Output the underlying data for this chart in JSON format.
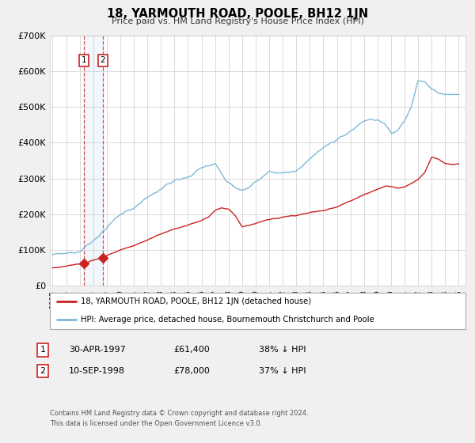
{
  "title": "18, YARMOUTH ROAD, POOLE, BH12 1JN",
  "subtitle": "Price paid vs. HM Land Registry's House Price Index (HPI)",
  "xlim": [
    1994.8,
    2025.5
  ],
  "ylim": [
    0,
    700000
  ],
  "yticks": [
    0,
    100000,
    200000,
    300000,
    400000,
    500000,
    600000,
    700000
  ],
  "ytick_labels": [
    "£0",
    "£100K",
    "£200K",
    "£300K",
    "£400K",
    "£500K",
    "£600K",
    "£700K"
  ],
  "sale1_date": 1997.33,
  "sale1_price": 61400,
  "sale2_date": 1998.71,
  "sale2_price": 78000,
  "hpi_color": "#7db8d8",
  "sale_color": "#cc2222",
  "legend_line1": "18, YARMOUTH ROAD, POOLE, BH12 1JN (detached house)",
  "legend_line2": "HPI: Average price, detached house, Bournemouth Christchurch and Poole",
  "table_row1_num": "1",
  "table_row1_date": "30-APR-1997",
  "table_row1_price": "£61,400",
  "table_row1_pct": "38% ↓ HPI",
  "table_row2_num": "2",
  "table_row2_date": "10-SEP-1998",
  "table_row2_price": "£78,000",
  "table_row2_pct": "37% ↓ HPI",
  "footer1": "Contains HM Land Registry data © Crown copyright and database right 2024.",
  "footer2": "This data is licensed under the Open Government Licence v3.0.",
  "background_color": "#f0f0f0",
  "plot_bg_color": "#ffffff",
  "hpi_anchors_x": [
    1995.0,
    1996.0,
    1997.0,
    1998.0,
    1999.0,
    2000.0,
    2001.0,
    2002.0,
    2003.0,
    2004.0,
    2005.0,
    2006.0,
    2007.0,
    2007.8,
    2008.5,
    2009.0,
    2009.5,
    2010.0,
    2011.0,
    2012.0,
    2013.0,
    2014.0,
    2015.0,
    2016.0,
    2017.0,
    2017.5,
    2018.0,
    2018.5,
    2019.0,
    2019.5,
    2020.0,
    2020.5,
    2021.0,
    2021.5,
    2022.0,
    2022.5,
    2023.0,
    2023.5,
    2024.0,
    2024.5,
    2025.0
  ],
  "hpi_anchors_y": [
    87000,
    90000,
    97000,
    125000,
    162000,
    200000,
    218000,
    247000,
    270000,
    295000,
    303000,
    330000,
    343000,
    295000,
    275000,
    268000,
    275000,
    290000,
    318000,
    315000,
    320000,
    355000,
    385000,
    410000,
    430000,
    448000,
    462000,
    465000,
    463000,
    455000,
    425000,
    435000,
    462000,
    500000,
    575000,
    570000,
    548000,
    540000,
    535000,
    535000,
    535000
  ],
  "sale_anchors_x": [
    1995.0,
    1995.5,
    1996.0,
    1996.5,
    1997.0,
    1997.33,
    1997.6,
    1998.0,
    1998.71,
    1999.0,
    1999.5,
    2000.0,
    2001.0,
    2002.0,
    2003.0,
    2004.0,
    2005.0,
    2006.0,
    2006.5,
    2007.0,
    2007.5,
    2008.0,
    2008.5,
    2009.0,
    2009.5,
    2010.0,
    2011.0,
    2012.0,
    2013.0,
    2014.0,
    2015.0,
    2016.0,
    2017.0,
    2018.0,
    2018.5,
    2019.0,
    2019.5,
    2020.0,
    2020.5,
    2021.0,
    2021.5,
    2022.0,
    2022.5,
    2023.0,
    2023.5,
    2024.0,
    2024.5,
    2025.0
  ],
  "sale_anchors_y": [
    50000,
    52000,
    55000,
    58000,
    61000,
    61400,
    65000,
    72000,
    78000,
    85000,
    92000,
    100000,
    112000,
    128000,
    145000,
    158000,
    170000,
    182000,
    192000,
    210000,
    218000,
    215000,
    196000,
    165000,
    168000,
    175000,
    185000,
    192000,
    197000,
    205000,
    210000,
    220000,
    238000,
    255000,
    262000,
    270000,
    278000,
    278000,
    272000,
    276000,
    285000,
    298000,
    318000,
    360000,
    355000,
    342000,
    340000,
    340000
  ]
}
